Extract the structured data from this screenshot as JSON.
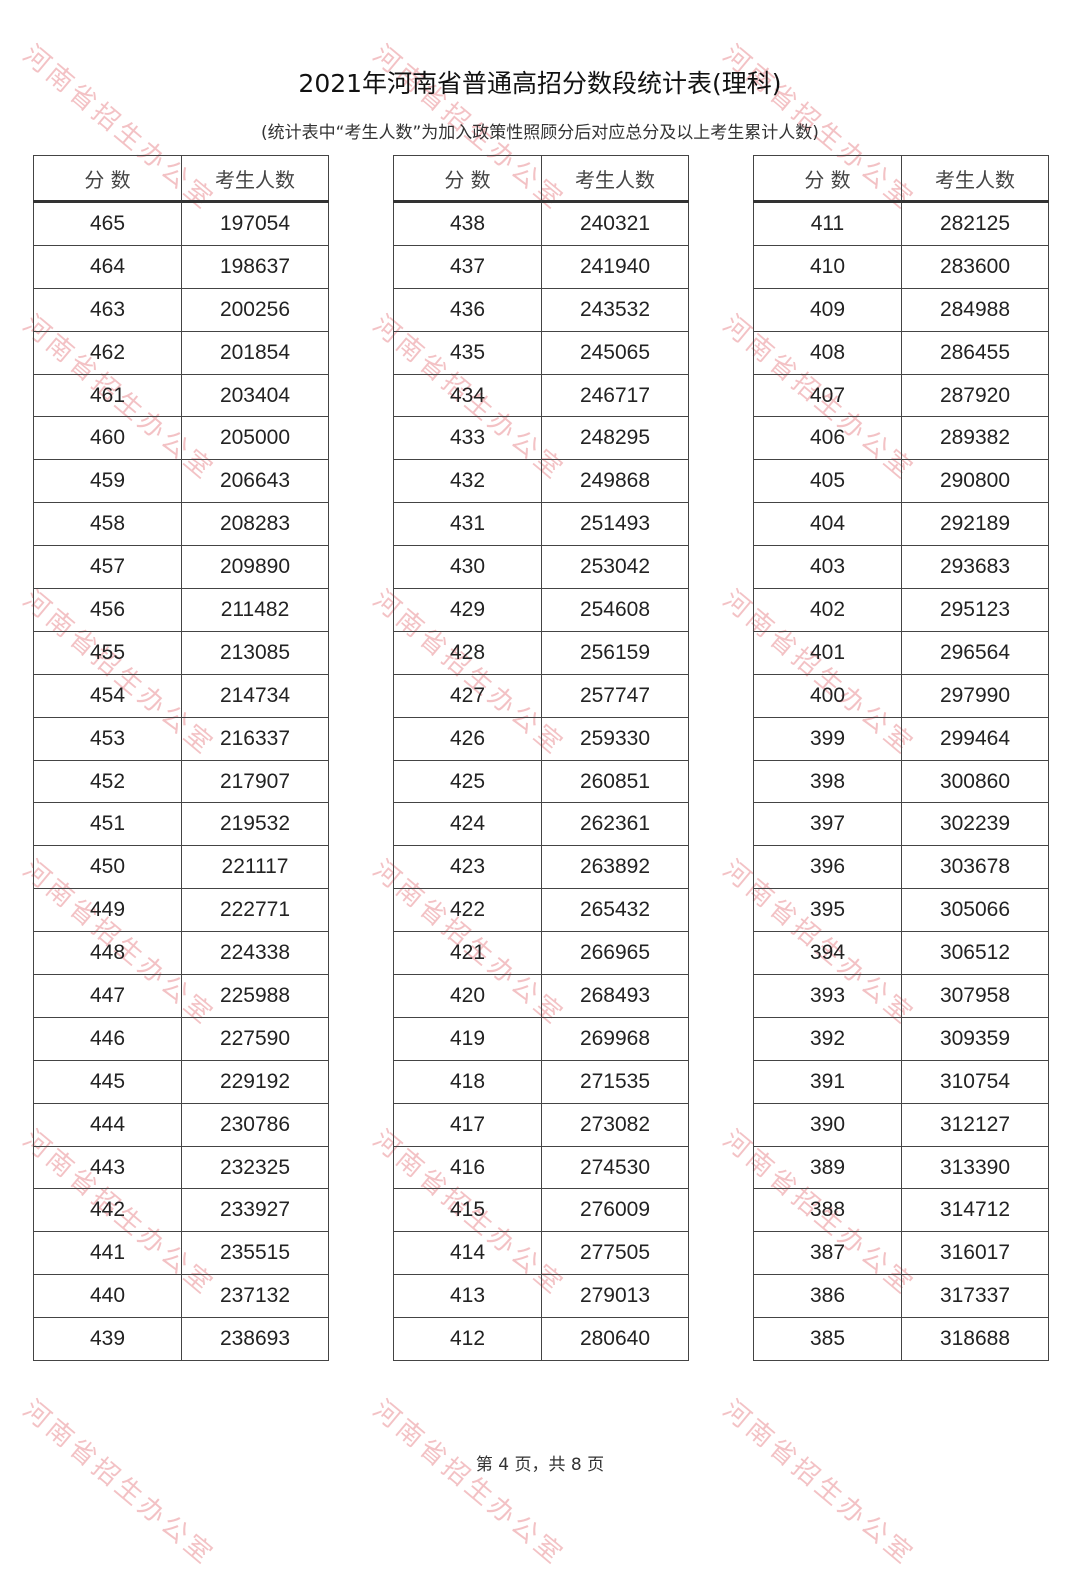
{
  "title": "2021年河南省普通高招分数段统计表(理科)",
  "subtitle": "(统计表中“考生人数”为加入政策性照顾分后对应总分及以上考生累计人数)",
  "headers": {
    "score": "分  数",
    "count": "考生人数"
  },
  "tables": [
    {
      "rows": [
        [
          "465",
          "197054"
        ],
        [
          "464",
          "198637"
        ],
        [
          "463",
          "200256"
        ],
        [
          "462",
          "201854"
        ],
        [
          "461",
          "203404"
        ],
        [
          "460",
          "205000"
        ],
        [
          "459",
          "206643"
        ],
        [
          "458",
          "208283"
        ],
        [
          "457",
          "209890"
        ],
        [
          "456",
          "211482"
        ],
        [
          "455",
          "213085"
        ],
        [
          "454",
          "214734"
        ],
        [
          "453",
          "216337"
        ],
        [
          "452",
          "217907"
        ],
        [
          "451",
          "219532"
        ],
        [
          "450",
          "221117"
        ],
        [
          "449",
          "222771"
        ],
        [
          "448",
          "224338"
        ],
        [
          "447",
          "225988"
        ],
        [
          "446",
          "227590"
        ],
        [
          "445",
          "229192"
        ],
        [
          "444",
          "230786"
        ],
        [
          "443",
          "232325"
        ],
        [
          "442",
          "233927"
        ],
        [
          "441",
          "235515"
        ],
        [
          "440",
          "237132"
        ],
        [
          "439",
          "238693"
        ]
      ]
    },
    {
      "rows": [
        [
          "438",
          "240321"
        ],
        [
          "437",
          "241940"
        ],
        [
          "436",
          "243532"
        ],
        [
          "435",
          "245065"
        ],
        [
          "434",
          "246717"
        ],
        [
          "433",
          "248295"
        ],
        [
          "432",
          "249868"
        ],
        [
          "431",
          "251493"
        ],
        [
          "430",
          "253042"
        ],
        [
          "429",
          "254608"
        ],
        [
          "428",
          "256159"
        ],
        [
          "427",
          "257747"
        ],
        [
          "426",
          "259330"
        ],
        [
          "425",
          "260851"
        ],
        [
          "424",
          "262361"
        ],
        [
          "423",
          "263892"
        ],
        [
          "422",
          "265432"
        ],
        [
          "421",
          "266965"
        ],
        [
          "420",
          "268493"
        ],
        [
          "419",
          "269968"
        ],
        [
          "418",
          "271535"
        ],
        [
          "417",
          "273082"
        ],
        [
          "416",
          "274530"
        ],
        [
          "415",
          "276009"
        ],
        [
          "414",
          "277505"
        ],
        [
          "413",
          "279013"
        ],
        [
          "412",
          "280640"
        ]
      ]
    },
    {
      "rows": [
        [
          "411",
          "282125"
        ],
        [
          "410",
          "283600"
        ],
        [
          "409",
          "284988"
        ],
        [
          "408",
          "286455"
        ],
        [
          "407",
          "287920"
        ],
        [
          "406",
          "289382"
        ],
        [
          "405",
          "290800"
        ],
        [
          "404",
          "292189"
        ],
        [
          "403",
          "293683"
        ],
        [
          "402",
          "295123"
        ],
        [
          "401",
          "296564"
        ],
        [
          "400",
          "297990"
        ],
        [
          "399",
          "299464"
        ],
        [
          "398",
          "300860"
        ],
        [
          "397",
          "302239"
        ],
        [
          "396",
          "303678"
        ],
        [
          "395",
          "305066"
        ],
        [
          "394",
          "306512"
        ],
        [
          "393",
          "307958"
        ],
        [
          "392",
          "309359"
        ],
        [
          "391",
          "310754"
        ],
        [
          "390",
          "312127"
        ],
        [
          "389",
          "313390"
        ],
        [
          "388",
          "314712"
        ],
        [
          "387",
          "316017"
        ],
        [
          "386",
          "317337"
        ],
        [
          "385",
          "318688"
        ]
      ]
    }
  ],
  "footer": "第 4 页，共 8 页",
  "watermark": "河南省招生办公室",
  "watermark_color": "#dc505a"
}
